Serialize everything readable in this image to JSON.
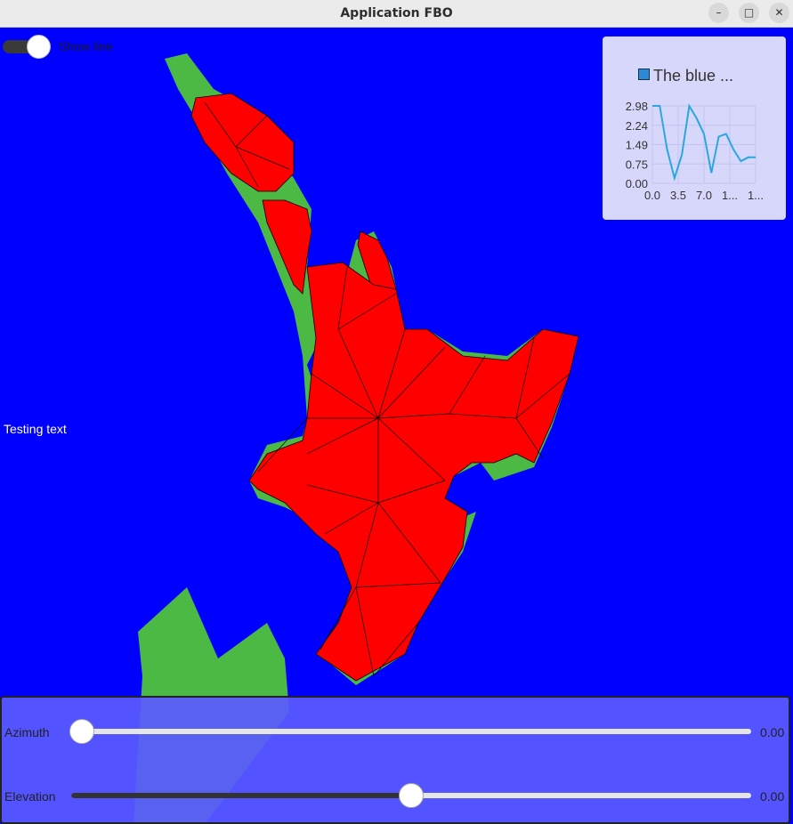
{
  "window": {
    "title": "Application FBO",
    "controls": [
      "minimize-icon",
      "maximize-icon",
      "close-icon"
    ]
  },
  "colors": {
    "background": "#0000fe",
    "landmass": "#ff0000",
    "outline_fill": "#4cb944",
    "panel": "#5a5aff",
    "series": "#29a8e0"
  },
  "toggle": {
    "label": "Show line",
    "checked": true
  },
  "overlay_text": "Testing text",
  "chart_data": {
    "type": "line",
    "series": [
      {
        "name": "The blue ...",
        "x": [
          0,
          1,
          2,
          3,
          4,
          5,
          6,
          7,
          8,
          9,
          10,
          11,
          12,
          13,
          14
        ],
        "values": [
          2.98,
          2.98,
          1.3,
          0.2,
          1.1,
          2.98,
          2.5,
          1.9,
          0.4,
          1.8,
          1.9,
          1.3,
          0.85,
          1.0,
          1.0
        ]
      }
    ],
    "legend_label": "The blue ...",
    "yticks": [
      "2.98",
      "2.24",
      "1.49",
      "0.75",
      "0.00"
    ],
    "xticks": [
      "0.0",
      "3.5",
      "7.0",
      "1...",
      "1..."
    ],
    "ylim": [
      0,
      2.98
    ],
    "xlim": [
      0,
      14
    ],
    "grid": true,
    "legend_position": "top"
  },
  "sliders": [
    {
      "label": "Azimuth",
      "value": "0.00",
      "level": 0.0
    },
    {
      "label": "Elevation",
      "value": "0.00",
      "level": 0.5
    }
  ]
}
